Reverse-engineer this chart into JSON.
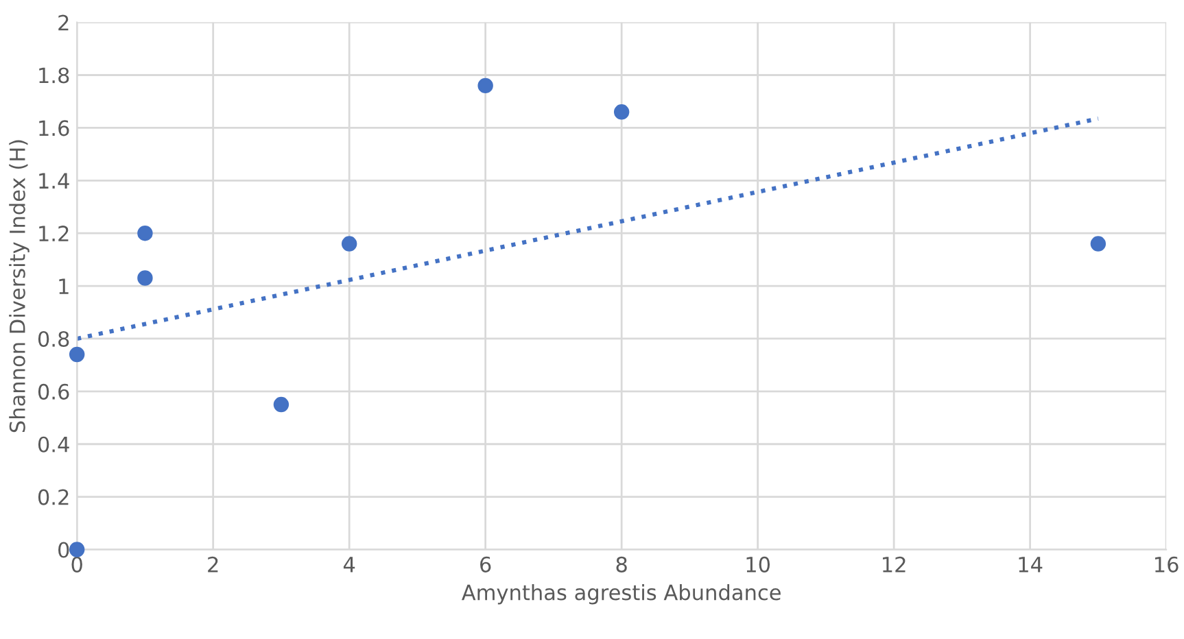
{
  "chart_data": {
    "type": "scatter",
    "xlabel": "Amynthas agrestis Abundance",
    "ylabel": "Shannon Diversity Index (H)",
    "xlim": [
      0,
      16
    ],
    "xticks": [
      0,
      2,
      4,
      6,
      8,
      10,
      12,
      14,
      16
    ],
    "ylim": [
      0,
      2
    ],
    "yticks": [
      0,
      0.2,
      0.4,
      0.6,
      0.8,
      1,
      1.2,
      1.4,
      1.6,
      1.8,
      2
    ],
    "grid": true,
    "marker": "circle",
    "series": [
      {
        "color": "#4472c4",
        "x": [
          0,
          0,
          1,
          1,
          3,
          4,
          6,
          8,
          15
        ],
        "values": [
          0.74,
          0,
          1.2,
          1.03,
          0.55,
          1.16,
          1.76,
          1.66,
          1.16
        ]
      },
      {
        "type": "line",
        "color": "#4472c4",
        "line_style": "dotted",
        "marker": "none",
        "x": [
          0,
          15
        ],
        "values": [
          0.8,
          1.635
        ]
      }
    ]
  }
}
